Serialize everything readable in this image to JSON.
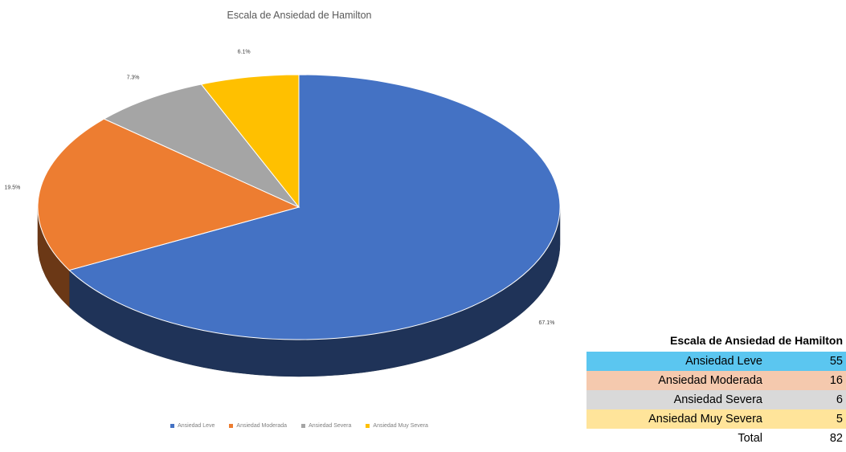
{
  "chart_data": {
    "type": "pie",
    "title": "Escala de Ansiedad de Hamilton",
    "categories": [
      "Ansiedad Leve",
      "Ansiedad Moderada",
      "Ansiedad Severa",
      "Ansiedad Muy Severa"
    ],
    "values": [
      67.1,
      19.5,
      7.3,
      6.1
    ],
    "data_labels": [
      "67.1%",
      "19.5%",
      "7.3%",
      "6.1%"
    ],
    "colors": [
      "#4472C4",
      "#ED7D31",
      "#A5A5A5",
      "#FFC000"
    ],
    "legend_position": "bottom"
  },
  "summary_table": {
    "title": "Escala de Ansiedad de Hamilton",
    "rows": [
      {
        "label": "Ansiedad Leve",
        "value": "55",
        "color": "#5BC6F0"
      },
      {
        "label": "Ansiedad Moderada",
        "value": "16",
        "color": "#F5C9AE"
      },
      {
        "label": "Ansiedad Severa",
        "value": "6",
        "color": "#D9D9D9"
      },
      {
        "label": "Ansiedad Muy Severa",
        "value": "5",
        "color": "#FFE49A"
      }
    ],
    "total_label": "Total",
    "total_value": "82"
  }
}
